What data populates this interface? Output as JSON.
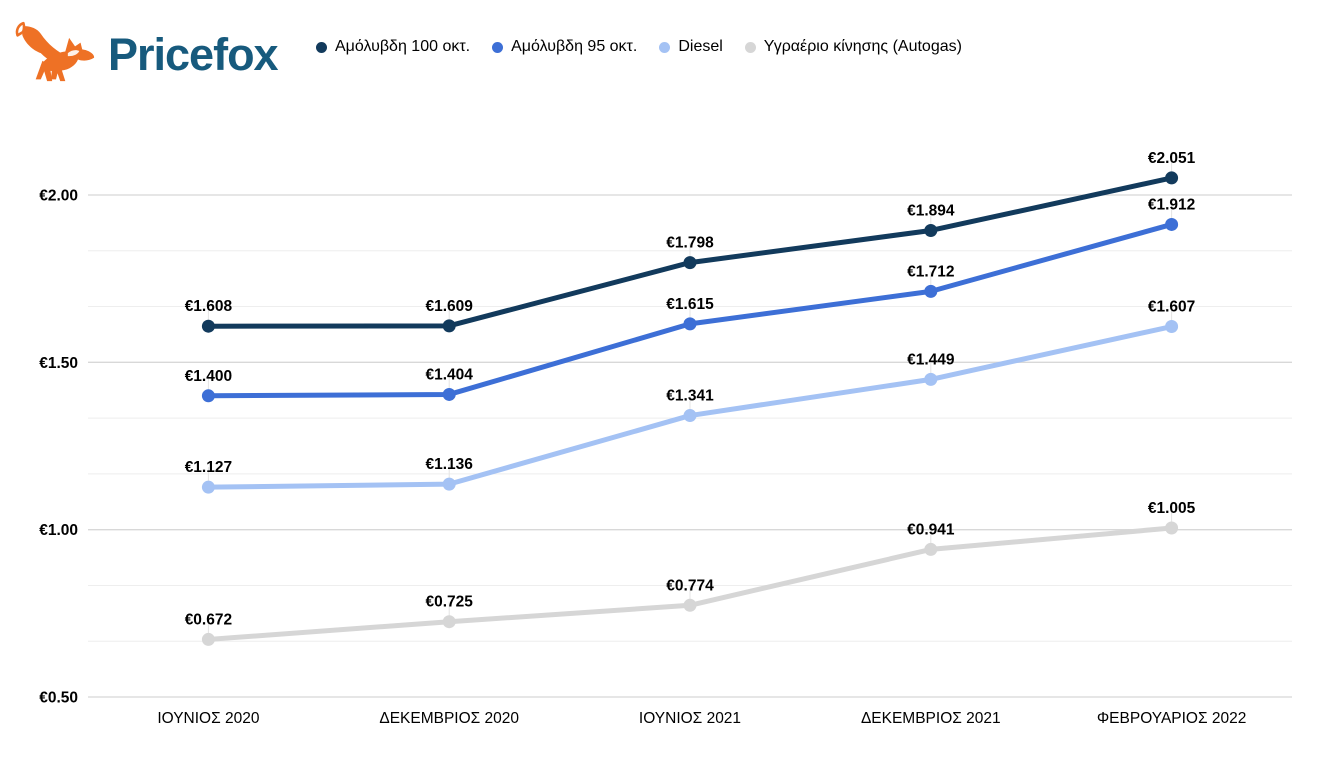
{
  "brand": {
    "name": "Pricefox",
    "text_color": "#175A7D",
    "fox_color": "#EE7125"
  },
  "chart_data": {
    "type": "line",
    "title": "",
    "xlabel": "",
    "ylabel": "",
    "currency": "EUR",
    "legend_position": "top",
    "grid": true,
    "ylim": [
      0.5,
      2.0
    ],
    "categories": [
      "ΙΟΥΝΙΟΣ 2020",
      "ΔΕΚΕΜΒΡΙΟΣ 2020",
      "ΙΟΥΝΙΟΣ 2021",
      "ΔΕΚΕΜΒΡΙΟΣ 2021",
      "ΦΕΒΡΟΥΑΡΙΟΣ 2022"
    ],
    "y_ticks": [
      {
        "value": 0.5,
        "label": "€0.50"
      },
      {
        "value": 1.0,
        "label": "€1.00"
      },
      {
        "value": 1.5,
        "label": "€1.50"
      },
      {
        "value": 2.0,
        "label": "€2.00"
      }
    ],
    "series": [
      {
        "name": "Αμόλυβδη 100 οκτ.",
        "color": "#123A5C",
        "values": [
          1.608,
          1.609,
          1.798,
          1.894,
          2.051
        ],
        "labels": [
          "€1.608",
          "€1.609",
          "€1.798",
          "€1.894",
          "€2.051"
        ]
      },
      {
        "name": "Αμόλυβδη 95 οκτ.",
        "color": "#3D6FD6",
        "values": [
          1.4,
          1.404,
          1.615,
          1.712,
          1.912
        ],
        "labels": [
          "€1.400",
          "€1.404",
          "€1.615",
          "€1.712",
          "€1.912"
        ]
      },
      {
        "name": "Diesel",
        "color": "#A4C2F4",
        "values": [
          1.127,
          1.136,
          1.341,
          1.449,
          1.607
        ],
        "labels": [
          "€1.127",
          "€1.136",
          "€1.341",
          "€1.449",
          "€1.607"
        ]
      },
      {
        "name": "Υγραέριο κίνησης (Autogas)",
        "color": "#D6D6D6",
        "values": [
          0.672,
          0.725,
          0.774,
          0.941,
          1.005
        ],
        "labels": [
          "€0.672",
          "€0.725",
          "€0.774",
          "€0.941",
          "€1.005"
        ]
      }
    ]
  }
}
